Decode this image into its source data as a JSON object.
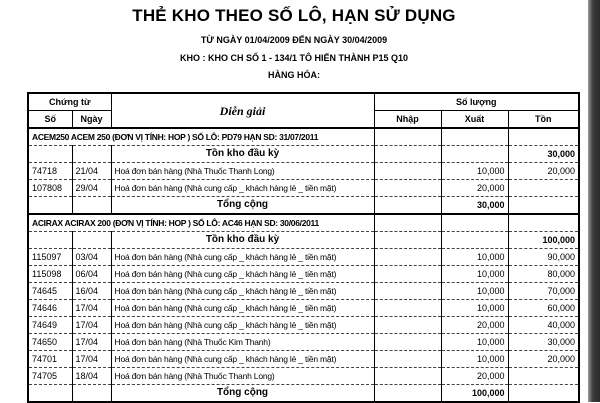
{
  "title": "THẺ KHO THEO SỐ LÔ, HẠN SỬ DỤNG",
  "date_range": "TỪ NGÀY 01/04/2009 ĐẾN NGÀY 30/04/2009",
  "warehouse": "KHO : KHO CH SỐ 1 - 134/1 TÔ HIẾN THÀNH P15 Q10",
  "goods": "HÀNG HÓA:",
  "headers": {
    "chung_tu": "Chứng từ",
    "so": "Số",
    "ngay": "Ngày",
    "dien_giai": "Diễn giải",
    "so_luong": "Số lượng",
    "nhap": "Nhập",
    "xuat": "Xuất",
    "ton": "Tồn"
  },
  "groups": [
    {
      "header": "ACEM250 ACEM 250  (ĐƠN VỊ TÍNH: HOP )          SỐ LÔ: PD79   HẠN SD: 31/07/2011",
      "opening_label": "Tồn kho đầu kỳ",
      "opening": "30,000",
      "rows": [
        {
          "so": "74718",
          "ngay": "21/04",
          "desc": "Hoá đơn bán hàng  (Nhà Thuốc Thanh Long)",
          "nhap": "",
          "xuat": "10,000",
          "ton": "20,000"
        },
        {
          "so": "107808",
          "ngay": "29/04",
          "desc": "Hoá đơn bán hàng  (Nhà cung cấp _ khách hàng lẻ _ tiền mặt)",
          "nhap": "",
          "xuat": "20,000",
          "ton": ""
        }
      ],
      "total_label": "Tổng cộng",
      "total_xuat": "30,000"
    },
    {
      "header": "ACIRAX ACIRAX 200  (ĐƠN VỊ TÍNH: HOP )          SỐ LÔ: AC46   HẠN SD: 30/06/2011",
      "opening_label": "Tồn kho đầu kỳ",
      "opening": "100,000",
      "rows": [
        {
          "so": "115097",
          "ngay": "03/04",
          "desc": "Hoá đơn bán hàng  (Nhà cung cấp _ khách hàng lẻ _ tiền mặt)",
          "nhap": "",
          "xuat": "10,000",
          "ton": "90,000"
        },
        {
          "so": "115098",
          "ngay": "06/04",
          "desc": "Hoá đơn bán hàng  (Nhà cung cấp _ khách hàng lẻ _ tiền mặt)",
          "nhap": "",
          "xuat": "10,000",
          "ton": "80,000"
        },
        {
          "so": "74645",
          "ngay": "16/04",
          "desc": "Hoá đơn bán hàng  (Nhà cung cấp _ khách hàng lẻ _ tiền mặt)",
          "nhap": "",
          "xuat": "10,000",
          "ton": "70,000"
        },
        {
          "so": "74646",
          "ngay": "17/04",
          "desc": "Hoá đơn bán hàng  (Nhà cung cấp _ khách hàng lẻ _ tiền mặt)",
          "nhap": "",
          "xuat": "10,000",
          "ton": "60,000"
        },
        {
          "so": "74649",
          "ngay": "17/04",
          "desc": "Hoá đơn bán hàng  (Nhà cung cấp _ khách hàng lẻ _ tiền mặt)",
          "nhap": "",
          "xuat": "20,000",
          "ton": "40,000"
        },
        {
          "so": "74650",
          "ngay": "17/04",
          "desc": "Hoá đơn bán hàng  (Nhà Thuốc Kim Thanh)",
          "nhap": "",
          "xuat": "10,000",
          "ton": "30,000"
        },
        {
          "so": "74701",
          "ngay": "17/04",
          "desc": "Hoá đơn bán hàng  (Nhà cung cấp _ khách hàng lẻ _ tiền mặt)",
          "nhap": "",
          "xuat": "10,000",
          "ton": "20,000"
        },
        {
          "so": "74705",
          "ngay": "18/04",
          "desc": "Hoá đơn bán hàng  (Nhà Thuốc Thanh Long)",
          "nhap": "",
          "xuat": "20,000",
          "ton": ""
        }
      ],
      "total_label": "Tổng cộng",
      "total_xuat": "100,000"
    }
  ]
}
